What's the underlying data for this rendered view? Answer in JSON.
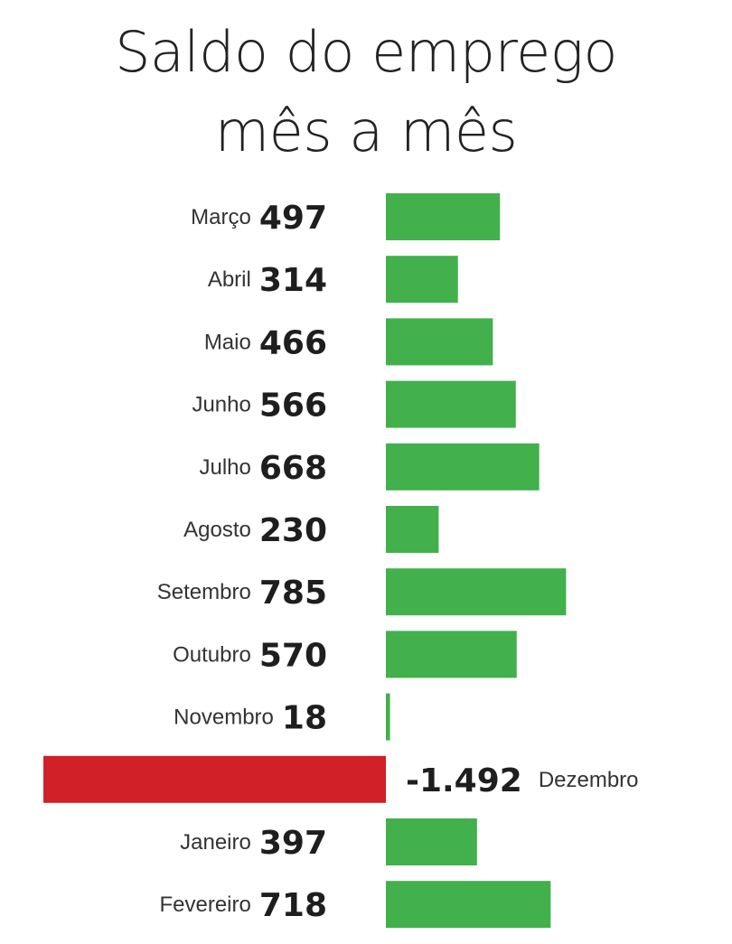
{
  "title_line1": "Saldo do emprego",
  "title_line2": "mês a mês",
  "colors": {
    "positive": "#42b04b",
    "negative": "#d12027",
    "text": "#1e1e1e"
  },
  "chart_data": {
    "type": "bar",
    "orientation": "horizontal",
    "title": "Saldo do emprego mês a mês",
    "categories": [
      "Março",
      "Abril",
      "Maio",
      "Junho",
      "Julho",
      "Agosto",
      "Setembro",
      "Outubro",
      "Novembro",
      "Dezembro",
      "Janeiro",
      "Fevereiro"
    ],
    "values": [
      497,
      314,
      466,
      566,
      668,
      230,
      785,
      570,
      18,
      -1492,
      397,
      718
    ],
    "value_labels": [
      "497",
      "314",
      "466",
      "566",
      "668",
      "230",
      "785",
      "570",
      "18",
      "-1.492",
      "397",
      "718"
    ],
    "grid": false,
    "legend": "none"
  }
}
